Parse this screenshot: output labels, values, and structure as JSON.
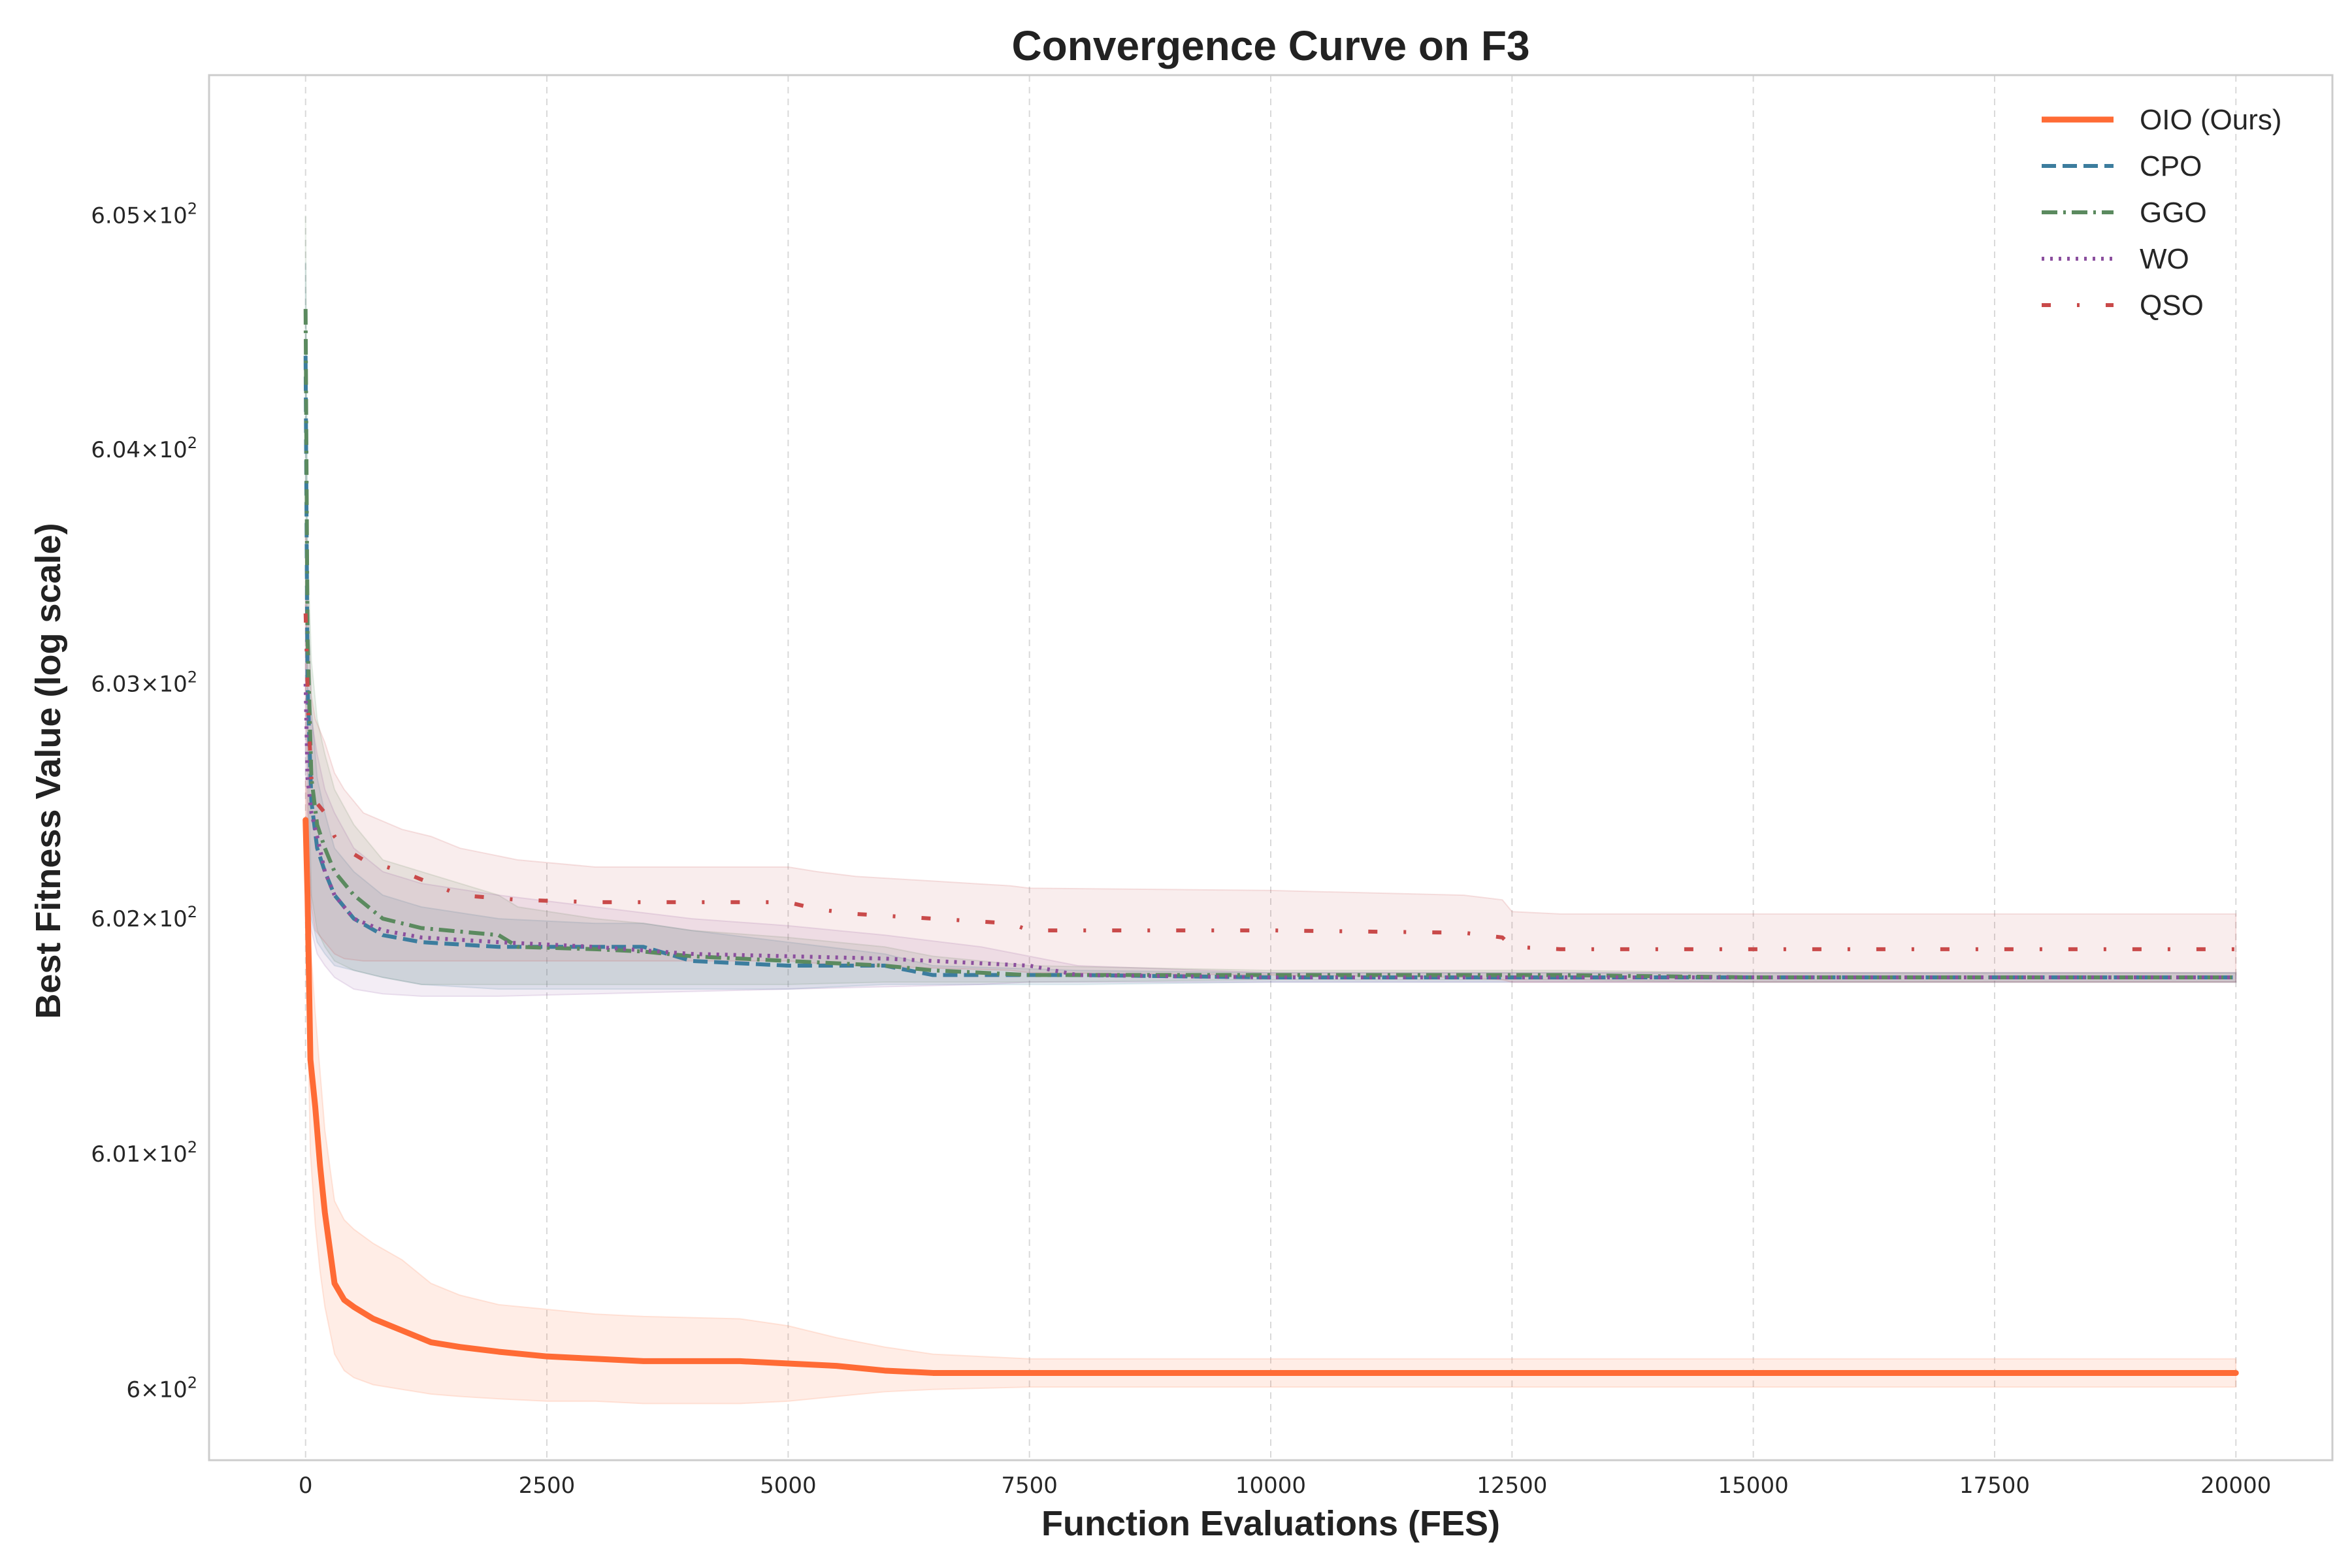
{
  "chart_data": {
    "type": "line",
    "title": "Convergence Curve on F3",
    "xlabel": "Function Evaluations (FES)",
    "ylabel": "Best Fitness Value (log scale)",
    "yscale": "log",
    "xlim": [
      -1000,
      21000
    ],
    "ylim": [
      599.7,
      605.6
    ],
    "grid": "x-dashed",
    "legend_position": "top-right",
    "x_ticks": [
      0,
      2500,
      5000,
      7500,
      10000,
      12500,
      15000,
      17500,
      20000
    ],
    "x_tick_labels": [
      "0",
      "2500",
      "5000",
      "7500",
      "10000",
      "12500",
      "15000",
      "17500",
      "20000"
    ],
    "y_ticks": [
      {
        "value": 600,
        "mantissa": "6",
        "exponent": "2"
      },
      {
        "value": 601,
        "mantissa": "6.01",
        "exponent": "2"
      },
      {
        "value": 602,
        "mantissa": "6.02",
        "exponent": "2"
      },
      {
        "value": 603,
        "mantissa": "6.03",
        "exponent": "2"
      },
      {
        "value": 604,
        "mantissa": "6.04",
        "exponent": "2"
      },
      {
        "value": 605,
        "mantissa": "6.05",
        "exponent": "2"
      }
    ],
    "times_symbol": "×",
    "tick_base": "10",
    "series": [
      {
        "name": "OIO (Ours)",
        "color": "#ff6b35",
        "dash": "solid",
        "width": 3,
        "band_opacity": 0.12,
        "x": [
          0,
          20,
          50,
          100,
          150,
          200,
          250,
          300,
          400,
          500,
          700,
          1000,
          1300,
          1600,
          2000,
          2500,
          3000,
          3500,
          4500,
          5000,
          5500,
          6000,
          6500,
          7500,
          10000,
          15000,
          20000
        ],
        "y": [
          602.42,
          602.1,
          601.4,
          601.2,
          600.95,
          600.75,
          600.6,
          600.45,
          600.38,
          600.35,
          600.3,
          600.25,
          600.2,
          600.18,
          600.16,
          600.14,
          600.13,
          600.12,
          600.12,
          600.11,
          600.1,
          600.08,
          600.07,
          600.07,
          600.07,
          600.07,
          600.07
        ],
        "lower": [
          602.2,
          601.6,
          601.0,
          600.7,
          600.5,
          600.35,
          600.25,
          600.15,
          600.08,
          600.05,
          600.02,
          600.0,
          599.98,
          599.97,
          599.96,
          599.95,
          599.95,
          599.94,
          599.94,
          599.95,
          599.97,
          599.99,
          600.0,
          600.01,
          600.01,
          600.01,
          600.01
        ],
        "upper": [
          602.6,
          602.5,
          601.9,
          601.6,
          601.35,
          601.1,
          600.95,
          600.8,
          600.72,
          600.68,
          600.62,
          600.55,
          600.45,
          600.4,
          600.36,
          600.34,
          600.32,
          600.31,
          600.3,
          600.27,
          600.22,
          600.18,
          600.15,
          600.13,
          600.13,
          600.13,
          600.13
        ]
      },
      {
        "name": "CPO",
        "color": "#3c7d9e",
        "dash": "dashed",
        "width": 2,
        "band_opacity": 0.12,
        "x": [
          0,
          20,
          60,
          120,
          200,
          300,
          500,
          800,
          1200,
          2000,
          3000,
          3500,
          4000,
          5000,
          6000,
          6500,
          8000,
          10000,
          12500,
          15000,
          20000
        ],
        "y": [
          604.4,
          603.0,
          602.5,
          602.3,
          602.2,
          602.1,
          602.0,
          601.93,
          601.9,
          601.88,
          601.88,
          601.88,
          601.82,
          601.8,
          601.8,
          601.76,
          601.76,
          601.75,
          601.75,
          601.75,
          601.75
        ],
        "lower": [
          604.0,
          602.5,
          602.0,
          601.9,
          601.85,
          601.8,
          601.78,
          601.75,
          601.72,
          601.7,
          601.7,
          601.7,
          601.7,
          601.7,
          601.72,
          601.72,
          601.72,
          601.73,
          601.73,
          601.73,
          601.73
        ],
        "upper": [
          604.8,
          603.5,
          602.9,
          602.6,
          602.45,
          602.3,
          602.2,
          602.1,
          602.05,
          602.0,
          601.98,
          601.98,
          601.95,
          601.9,
          601.85,
          601.8,
          601.78,
          601.77,
          601.77,
          601.77,
          601.77
        ]
      },
      {
        "name": "GGO",
        "color": "#5b8a5f",
        "dash": "dashdot",
        "width": 2,
        "band_opacity": 0.12,
        "x": [
          0,
          20,
          60,
          120,
          200,
          300,
          500,
          800,
          1200,
          2000,
          2200,
          3000,
          3500,
          4000,
          5000,
          6000,
          6500,
          7500,
          10000,
          13000,
          15000,
          20000
        ],
        "y": [
          604.6,
          603.2,
          602.6,
          602.4,
          602.3,
          602.2,
          602.1,
          602.0,
          601.96,
          601.93,
          601.88,
          601.87,
          601.86,
          601.84,
          601.82,
          601.8,
          601.78,
          601.76,
          601.76,
          601.76,
          601.75,
          601.75
        ],
        "lower": [
          604.2,
          602.8,
          602.1,
          601.95,
          601.88,
          601.82,
          601.78,
          601.75,
          601.72,
          601.72,
          601.72,
          601.72,
          601.72,
          601.72,
          601.72,
          601.73,
          601.73,
          601.73,
          601.74,
          601.74,
          601.73,
          601.73
        ],
        "upper": [
          605.0,
          603.6,
          603.1,
          602.85,
          602.7,
          602.55,
          602.4,
          602.25,
          602.2,
          602.1,
          602.05,
          602.0,
          601.98,
          601.95,
          601.92,
          601.88,
          601.84,
          601.8,
          601.78,
          601.78,
          601.77,
          601.77
        ]
      },
      {
        "name": "WO",
        "color": "#8b4f9e",
        "dash": "dotted",
        "width": 2,
        "band_opacity": 0.1,
        "x": [
          0,
          20,
          60,
          120,
          200,
          300,
          500,
          800,
          1200,
          2000,
          3000,
          4000,
          5000,
          6000,
          7000,
          7500,
          8000,
          10000,
          15000,
          20000
        ],
        "y": [
          603.0,
          602.6,
          602.45,
          602.35,
          602.2,
          602.1,
          602.0,
          601.95,
          601.92,
          601.9,
          601.88,
          601.85,
          601.84,
          601.83,
          601.81,
          601.8,
          601.76,
          601.75,
          601.75,
          601.75
        ],
        "lower": [
          602.6,
          602.2,
          601.95,
          601.85,
          601.8,
          601.75,
          601.7,
          601.68,
          601.67,
          601.67,
          601.68,
          601.69,
          601.7,
          601.71,
          601.72,
          601.73,
          601.73,
          601.73,
          601.73,
          601.73
        ],
        "upper": [
          603.4,
          603.0,
          602.85,
          602.7,
          602.55,
          602.45,
          602.3,
          602.2,
          602.15,
          602.1,
          602.05,
          602.0,
          601.97,
          601.93,
          601.88,
          601.84,
          601.8,
          601.77,
          601.77,
          601.77
        ]
      },
      {
        "name": "QSO",
        "color": "#c94a4a",
        "dash": "loosedashdot",
        "width": 2,
        "band_opacity": 0.1,
        "x": [
          0,
          30,
          60,
          100,
          200,
          300,
          400,
          600,
          1000,
          1300,
          1600,
          2200,
          3000,
          5000,
          5300,
          5700,
          6500,
          7300,
          7500,
          10000,
          12000,
          12400,
          12500,
          13000,
          15000,
          20000
        ],
        "y": [
          603.3,
          602.85,
          602.6,
          602.5,
          602.45,
          602.35,
          602.3,
          602.25,
          602.2,
          602.15,
          602.1,
          602.08,
          602.07,
          602.07,
          602.04,
          602.02,
          602.0,
          601.98,
          601.95,
          601.95,
          601.94,
          601.92,
          601.88,
          601.87,
          601.87,
          601.87
        ],
        "lower": [
          602.9,
          602.4,
          602.05,
          601.95,
          601.9,
          601.85,
          601.83,
          601.82,
          601.82,
          601.82,
          601.82,
          601.82,
          601.82,
          601.82,
          601.81,
          601.8,
          601.79,
          601.78,
          601.77,
          601.76,
          601.75,
          601.74,
          601.73,
          601.73,
          601.73,
          601.73
        ],
        "upper": [
          603.7,
          603.25,
          602.95,
          602.85,
          602.75,
          602.62,
          602.55,
          602.45,
          602.38,
          602.35,
          602.3,
          602.25,
          602.22,
          602.22,
          602.2,
          602.18,
          602.16,
          602.14,
          602.13,
          602.12,
          602.1,
          602.08,
          602.03,
          602.02,
          602.02,
          602.02
        ]
      }
    ]
  }
}
